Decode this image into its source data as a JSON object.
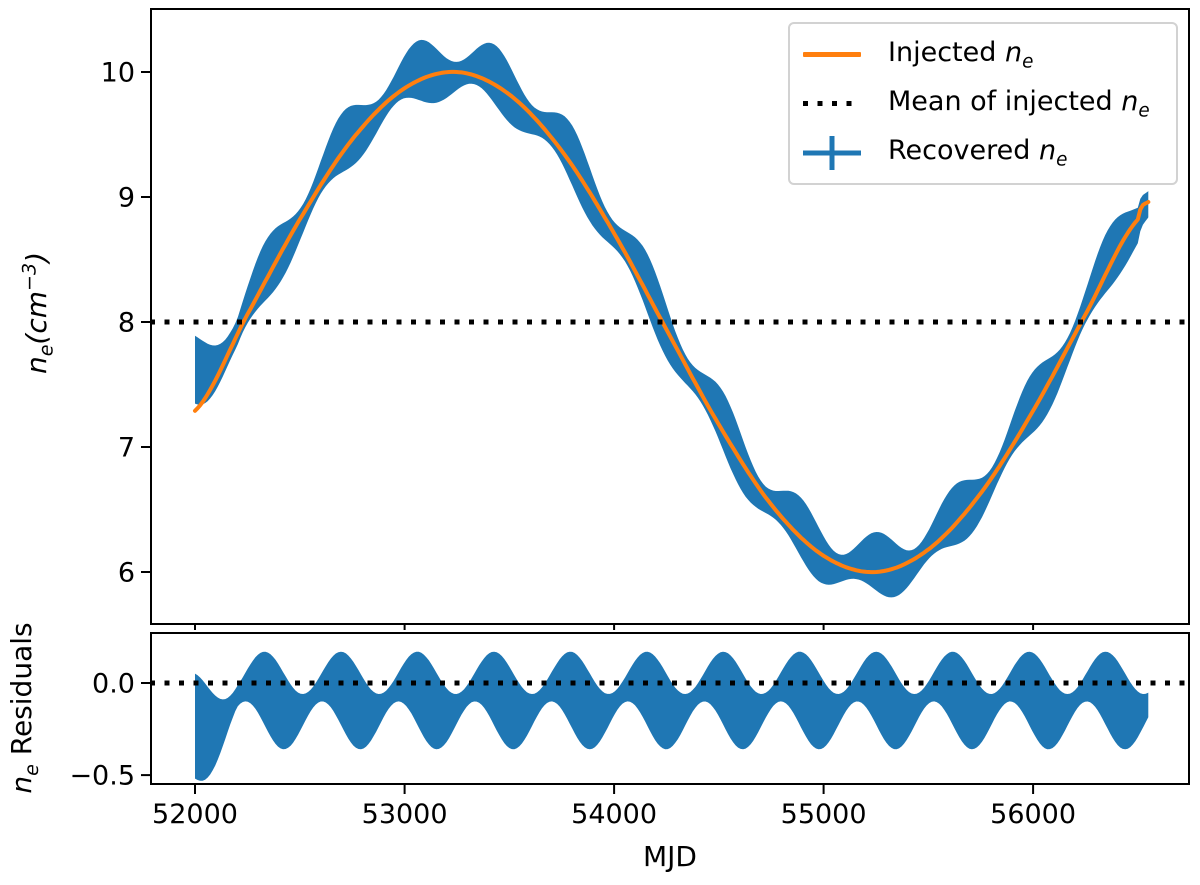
{
  "figure": {
    "xlabel": "MJD",
    "colors": {
      "injected": "#ff7f0e",
      "recovered": "#1f77b4",
      "mean_line": "#000000",
      "spine": "#000000",
      "legend_border": "#d2d2d2"
    },
    "xlim": [
      51785,
      56749
    ],
    "xticks": [
      {
        "value": 52000,
        "label": "52000"
      },
      {
        "value": 53000,
        "label": "53000"
      },
      {
        "value": 54000,
        "label": "54000"
      },
      {
        "value": 55000,
        "label": "55000"
      },
      {
        "value": 56000,
        "label": "56000"
      }
    ]
  },
  "chart_data": [
    {
      "type": "line",
      "panel": "main",
      "ylabel_parts": [
        {
          "t": "n",
          "style": "i"
        },
        {
          "t": "e",
          "style": "isub"
        },
        {
          "t": "(cm",
          "style": "i"
        },
        {
          "t": "−3",
          "style": "isup"
        },
        {
          "t": ")",
          "style": "i"
        }
      ],
      "ylim": [
        5.576,
        10.512
      ],
      "yticks": [
        {
          "value": 10,
          "label": "10"
        },
        {
          "value": 9,
          "label": "9"
        },
        {
          "value": 8,
          "label": "8"
        },
        {
          "value": 7,
          "label": "7"
        },
        {
          "value": 6,
          "label": "6"
        }
      ],
      "legend": {
        "position": "upper right",
        "entries": [
          {
            "swatch": "line",
            "color": "#ff7f0e",
            "parts": [
              {
                "t": "Injected ",
                "style": "r"
              },
              {
                "t": "n",
                "style": "i"
              },
              {
                "t": "e",
                "style": "isub"
              }
            ]
          },
          {
            "swatch": "dotted",
            "color": "#000000",
            "parts": [
              {
                "t": "Mean of injected ",
                "style": "r"
              },
              {
                "t": "n",
                "style": "i"
              },
              {
                "t": "e",
                "style": "isub"
              }
            ]
          },
          {
            "swatch": "errorbar",
            "color": "#1f77b4",
            "parts": [
              {
                "t": "Recovered ",
                "style": "r"
              },
              {
                "t": "n",
                "style": "i"
              },
              {
                "t": "e",
                "style": "isub"
              }
            ]
          }
        ]
      },
      "series": [
        {
          "name": "Injected ne",
          "type": "line",
          "color": "#ff7f0e",
          "linewidth": 4,
          "x": [
            52000,
            52250,
            52500,
            52750,
            53000,
            53250,
            53500,
            53750,
            54000,
            54250,
            54500,
            54750,
            55000,
            55250,
            55500,
            55750,
            56000,
            56250,
            56500,
            56550
          ],
          "y": [
            7.29,
            8.06,
            8.82,
            9.46,
            9.87,
            10.0,
            9.82,
            9.37,
            8.71,
            7.94,
            7.18,
            6.54,
            6.13,
            6.0,
            6.18,
            6.63,
            7.29,
            8.06,
            8.82,
            8.96
          ]
        },
        {
          "name": "Mean of injected ne",
          "type": "hline",
          "color": "#000000",
          "linestyle": "dotted",
          "y": 8
        },
        {
          "name": "Recovered ne",
          "type": "errorband",
          "color": "#1f77b4",
          "x_range": [
            52000,
            56550
          ],
          "band_model": {
            "seasonal_period": 365,
            "upper": {
              "base": 0.2,
              "amp": 0.12,
              "phase_t0": 52240
            },
            "lower": {
              "base": -0.15,
              "amp": 0.08,
              "phase_t0": 52150
            },
            "start_anomaly": {
              "from": 52000,
              "to": 52200,
              "upper_add": 0.3,
              "lower_add": 0.25
            }
          }
        }
      ]
    },
    {
      "type": "line",
      "panel": "residuals",
      "ylabel_parts": [
        {
          "t": "n",
          "style": "i"
        },
        {
          "t": "e",
          "style": "isub"
        },
        {
          "t": " Residuals",
          "style": "r"
        }
      ],
      "ylim": [
        -0.554,
        0.277
      ],
      "yticks": [
        {
          "value": 0.0,
          "label": "0.0"
        },
        {
          "value": -0.5,
          "label": "−0.5"
        }
      ],
      "series": [
        {
          "name": "zero line",
          "type": "hline",
          "color": "#000000",
          "linestyle": "dotted",
          "y": 0.0
        },
        {
          "name": "ne residuals",
          "type": "errorband",
          "color": "#1f77b4",
          "x_range": [
            52000,
            56550
          ],
          "band_model": {
            "seasonal_period": 365,
            "upper": {
              "base": 0.055,
              "amp": 0.115,
              "phase_t0": 52240
            },
            "lower": {
              "base": -0.23,
              "amp": 0.13,
              "phase_t0": 52150
            },
            "start_anomaly": {
              "from": 52000,
              "to": 52200,
              "upper_add": -0.1,
              "lower_add": -0.22
            }
          }
        }
      ]
    }
  ]
}
